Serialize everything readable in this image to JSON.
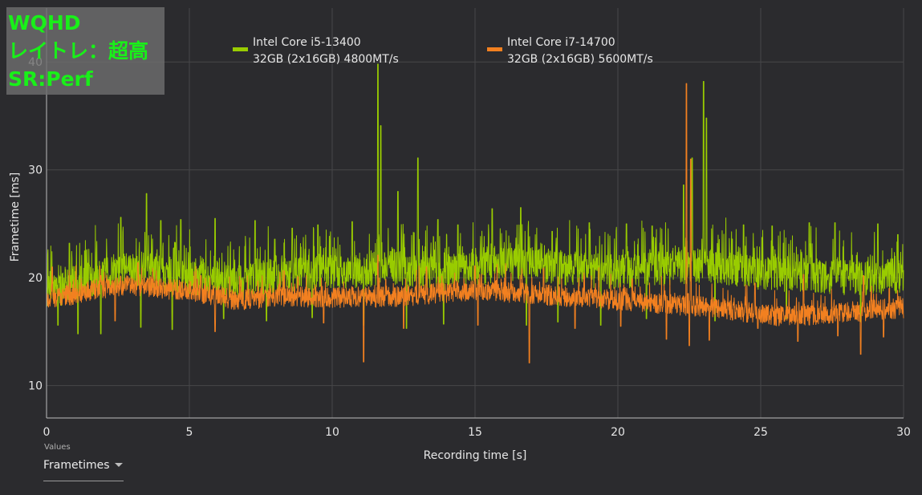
{
  "overlay": {
    "resolution": "WQHD",
    "raytracing": "レイトレ：超高",
    "upscaler": "SR:Perf"
  },
  "values_selector": {
    "caption": "Values",
    "selected": "Frametimes"
  },
  "chart_data": {
    "type": "line",
    "title": "",
    "xlabel": "Recording time [s]",
    "ylabel": "Frametime [ms]",
    "xlim": [
      0,
      30
    ],
    "ylim": [
      7,
      45
    ],
    "xticks": [
      0,
      5,
      10,
      15,
      20,
      25,
      30
    ],
    "yticks": [
      10,
      20,
      30,
      40
    ],
    "grid": true,
    "legend_position": "top-center",
    "series": [
      {
        "name": "Intel Core i5-13400",
        "memory": "32GB (2x16GB) 4800MT/s",
        "color": "#99cc00",
        "x": [
          0,
          0.5,
          1,
          1.5,
          2,
          2.5,
          3,
          3.5,
          4,
          4.5,
          5,
          5.5,
          6,
          6.5,
          7,
          7.5,
          8,
          8.5,
          9,
          9.5,
          10,
          10.5,
          11,
          11.5,
          12,
          12.5,
          13,
          13.5,
          14,
          14.5,
          15,
          15.5,
          16,
          16.5,
          17,
          17.5,
          18,
          18.5,
          19,
          19.5,
          20,
          20.5,
          21,
          21.5,
          22,
          22.5,
          23,
          23.5,
          24,
          24.5,
          25,
          25.5,
          26,
          26.5,
          27,
          27.5,
          28,
          28.5,
          29,
          29.5,
          30
        ],
        "typical": [
          18.6,
          19.0,
          19.5,
          19.8,
          20.2,
          20.5,
          20.6,
          20.8,
          20.5,
          20.2,
          20.0,
          19.8,
          19.6,
          19.5,
          19.6,
          20.0,
          20.2,
          20.3,
          20.4,
          20.5,
          20.5,
          20.6,
          20.7,
          20.8,
          21.0,
          20.9,
          20.6,
          20.5,
          20.6,
          20.8,
          20.9,
          21.0,
          21.2,
          21.3,
          21.2,
          21.0,
          20.9,
          20.8,
          20.7,
          20.6,
          20.5,
          20.6,
          20.7,
          20.8,
          20.9,
          21.0,
          21.2,
          21.0,
          20.8,
          20.6,
          20.5,
          20.4,
          20.3,
          20.3,
          20.2,
          20.1,
          20.0,
          20.0,
          19.9,
          20.0,
          20.0
        ],
        "peak_x": [
          0.8,
          1.9,
          2.6,
          3.5,
          4.0,
          4.7,
          5.9,
          7.3,
          8.6,
          9.5,
          10.7,
          11.6,
          11.7,
          12.3,
          13.0,
          13.7,
          14.4,
          15.6,
          16.6,
          17.7,
          19.0,
          20.3,
          21.2,
          22.3,
          22.6,
          23.0,
          23.1,
          24.4,
          25.4,
          26.7,
          27.6,
          29.1,
          29.8
        ],
        "peak_y": [
          23.2,
          26.1,
          25.6,
          27.8,
          25.3,
          25.4,
          25.5,
          25.3,
          24.6,
          24.9,
          25.2,
          39.8,
          34.1,
          28.0,
          31.1,
          25.4,
          24.9,
          26.4,
          26.5,
          24.3,
          25.1,
          25.0,
          24.8,
          28.6,
          31.1,
          38.2,
          34.8,
          24.9,
          24.8,
          25.1,
          25.1,
          25.0,
          24.0
        ],
        "dip_x": [
          0.4,
          1.1,
          1.9,
          3.3,
          4.4,
          6.2,
          7.7,
          9.3,
          11.1,
          12.6,
          13.9,
          16.8,
          17.9,
          19.4,
          21.0,
          23.4,
          25.9,
          28.5
        ],
        "dip_y": [
          15.6,
          14.8,
          14.8,
          15.4,
          15.2,
          16.2,
          16.0,
          16.3,
          15.6,
          15.3,
          15.7,
          15.6,
          15.9,
          15.6,
          16.2,
          16.0,
          16.2,
          15.9
        ]
      },
      {
        "name": "Intel Core i7-14700",
        "memory": "32GB (2x16GB) 5600MT/s",
        "color": "#f28020",
        "x": [
          0,
          0.5,
          1,
          1.5,
          2,
          2.5,
          3,
          3.5,
          4,
          4.5,
          5,
          5.5,
          6,
          6.5,
          7,
          7.5,
          8,
          8.5,
          9,
          9.5,
          10,
          10.5,
          11,
          11.5,
          12,
          12.5,
          13,
          13.5,
          14,
          14.5,
          15,
          15.5,
          16,
          16.5,
          17,
          17.5,
          18,
          18.5,
          19,
          19.5,
          20,
          20.5,
          21,
          21.5,
          22,
          22.5,
          23,
          23.5,
          24,
          24.5,
          25,
          25.5,
          26,
          26.5,
          27,
          27.5,
          28,
          28.5,
          29,
          29.5,
          30
        ],
        "typical": [
          18.0,
          18.2,
          18.5,
          18.8,
          19.0,
          19.2,
          19.3,
          19.2,
          19.0,
          18.9,
          18.8,
          18.5,
          18.3,
          18.0,
          18.0,
          18.1,
          18.2,
          18.3,
          18.2,
          18.2,
          18.1,
          18.2,
          18.3,
          18.2,
          18.2,
          18.3,
          18.4,
          18.5,
          18.6,
          18.7,
          18.8,
          18.8,
          18.7,
          18.6,
          18.5,
          18.4,
          18.3,
          18.2,
          18.1,
          18.0,
          17.9,
          17.8,
          17.7,
          17.6,
          17.5,
          17.4,
          17.3,
          17.2,
          17.0,
          16.8,
          16.6,
          16.5,
          16.4,
          16.5,
          16.6,
          16.7,
          16.8,
          16.9,
          17.0,
          17.1,
          17.2
        ],
        "peak_x": [
          0.2,
          1.9,
          3.2,
          5.4,
          8.8,
          11.1,
          11.6,
          13.3,
          15.0,
          17.4,
          20.5,
          22.4,
          22.55,
          24.8,
          26.5,
          28.6,
          29.5
        ],
        "peak_y": [
          21.0,
          20.2,
          21.4,
          20.2,
          20.1,
          24.5,
          22.1,
          21.0,
          21.1,
          20.9,
          19.9,
          38.0,
          31.0,
          19.5,
          20.3,
          20.2,
          19.0
        ],
        "dip_x": [
          2.4,
          5.9,
          9.7,
          11.1,
          12.5,
          15.1,
          16.9,
          18.5,
          20.1,
          21.7,
          22.5,
          23.2,
          24.9,
          26.3,
          27.7,
          28.5,
          29.3
        ],
        "dip_y": [
          16.0,
          15.0,
          15.8,
          12.2,
          15.3,
          15.6,
          12.1,
          15.3,
          15.5,
          14.3,
          13.7,
          14.2,
          15.3,
          14.1,
          14.6,
          12.9,
          14.5
        ]
      }
    ]
  }
}
